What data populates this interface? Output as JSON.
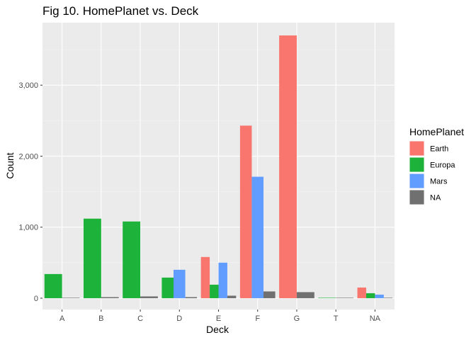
{
  "chart_data": {
    "type": "bar",
    "title": "Fig 10. HomePlanet vs. Deck",
    "xlabel": "Deck",
    "ylabel": "Count",
    "categories": [
      "A",
      "B",
      "C",
      "D",
      "E",
      "F",
      "G",
      "T",
      "NA"
    ],
    "ylim": [
      -160,
      3880
    ],
    "yticks": [
      0,
      1000,
      2000,
      3000
    ],
    "ytick_labels": [
      "0",
      "1,000",
      "2,000",
      "3,000"
    ],
    "grid": true,
    "legend": {
      "title": "HomePlanet",
      "position": "right"
    },
    "series": [
      {
        "name": "Earth",
        "color": "#F8766D",
        "values": [
          null,
          null,
          null,
          null,
          580,
          2430,
          3700,
          null,
          150
        ]
      },
      {
        "name": "Europa",
        "color": "#1DB23A",
        "values": [
          340,
          1120,
          1080,
          290,
          190,
          null,
          null,
          5,
          70
        ]
      },
      {
        "name": "Mars",
        "color": "#619CFF",
        "values": [
          null,
          null,
          null,
          400,
          500,
          1710,
          null,
          null,
          50
        ]
      },
      {
        "name": "NA",
        "color": "#707070",
        "values": [
          5,
          15,
          25,
          15,
          35,
          95,
          85,
          2,
          5
        ]
      }
    ]
  },
  "colors": {
    "panel": "#EBEBEB",
    "grid_major": "#FFFFFF",
    "grid_minor": "#F5F5F5"
  }
}
